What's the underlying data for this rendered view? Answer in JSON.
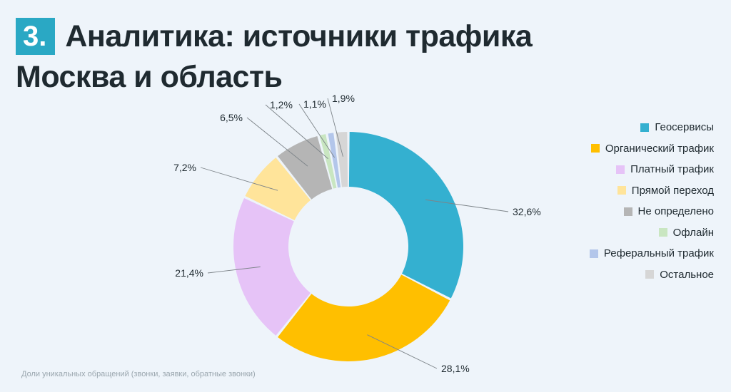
{
  "header": {
    "number": "3.",
    "title_line1": "Аналитика: источники трафика",
    "title_line2": "Москва и область"
  },
  "footnote": "Доли уникальных обращений (звонки, заявки, обратные звонки)",
  "chart_data": {
    "type": "pie",
    "style": "donut",
    "title": "",
    "legend_position": "right",
    "categories": [
      "Геосервисы",
      "Органический трафик",
      "Платный трафик",
      "Прямой переход",
      "Не определено",
      "Офлайн",
      "Реферальный трафик",
      "Остальное"
    ],
    "values": [
      32.6,
      28.1,
      21.4,
      7.2,
      6.5,
      1.2,
      1.1,
      1.9
    ],
    "labels": [
      "32,6%",
      "28,1%",
      "21,4%",
      "7,2%",
      "6,5%",
      "1,2%",
      "1,1%",
      "1,9%"
    ],
    "colors": [
      "#34b0d0",
      "#ffbf00",
      "#e6c3f7",
      "#ffe49a",
      "#b5b5b5",
      "#c9e6c1",
      "#b3c6ea",
      "#d6d6d6"
    ]
  }
}
